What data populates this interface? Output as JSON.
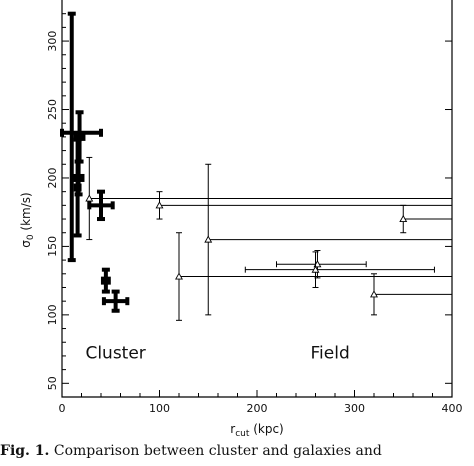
{
  "chart_data": {
    "type": "scatter",
    "xlabel": "r",
    "xlabel_subscript": "cut",
    "xlabel_unit": " (kpc)",
    "ylabel": "σ",
    "ylabel_subscript": "0",
    "ylabel_unit": " (km/s)",
    "xlim": [
      0,
      400
    ],
    "ylim": [
      40,
      330
    ],
    "xticks": [
      0,
      100,
      200,
      300,
      400
    ],
    "yticks": [
      50,
      100,
      150,
      200,
      250,
      300
    ],
    "grid": false,
    "annotations": [
      {
        "text": "Cluster",
        "x": 55,
        "y": 68
      },
      {
        "text": "Field",
        "x": 275,
        "y": 68
      }
    ],
    "series": [
      {
        "marker": "none",
        "weight": "bold",
        "points": [
          {
            "x": 10,
            "xerr": [
              0,
              0
            ],
            "y": 230,
            "yerr": [
              90,
              90
            ]
          },
          {
            "x": 20,
            "xerr": [
              20,
              20
            ],
            "y": 233,
            "yerr": [
              0,
              0
            ]
          },
          {
            "x": 18,
            "xerr": [
              4,
              4
            ],
            "y": 230,
            "yerr": [
              18,
              18
            ]
          },
          {
            "x": 17,
            "xerr": [
              4,
              4
            ],
            "y": 200,
            "yerr": [
              12,
              12
            ]
          },
          {
            "x": 16,
            "xerr": [
              2,
              2
            ],
            "y": 193,
            "yerr": [
              35,
              35
            ]
          },
          {
            "x": 40,
            "xerr": [
              12,
              12
            ],
            "y": 180,
            "yerr": [
              10,
              10
            ]
          },
          {
            "x": 45,
            "xerr": [
              3,
              3
            ],
            "y": 125,
            "yerr": [
              8,
              8
            ]
          },
          {
            "x": 55,
            "xerr": [
              12,
              12
            ],
            "y": 110,
            "yerr": [
              7,
              7
            ]
          }
        ]
      },
      {
        "marker": "triangle",
        "weight": "thin",
        "points": [
          {
            "x": 28,
            "xerr": [
              0,
              372
            ],
            "y": 185,
            "yerr": [
              30,
              30
            ]
          },
          {
            "x": 100,
            "xerr": [
              0,
              300
            ],
            "y": 180,
            "yerr": [
              10,
              10
            ]
          },
          {
            "x": 150,
            "xerr": [
              0,
              250
            ],
            "y": 155,
            "yerr": [
              55,
              55
            ]
          },
          {
            "x": 120,
            "xerr": [
              0,
              280
            ],
            "y": 128,
            "yerr": [
              32,
              32
            ]
          },
          {
            "x": 262,
            "xerr": [
              42,
              50
            ],
            "y": 137,
            "yerr": [
              10,
              10
            ]
          },
          {
            "x": 260,
            "xerr": [
              72,
              122
            ],
            "y": 133,
            "yerr": [
              13,
              13
            ]
          },
          {
            "x": 320,
            "xerr": [
              0,
              80
            ],
            "y": 115,
            "yerr": [
              15,
              15
            ]
          },
          {
            "x": 350,
            "xerr": [
              0,
              50
            ],
            "y": 170,
            "yerr": [
              10,
              10
            ]
          }
        ]
      }
    ]
  },
  "caption": {
    "label": "Fig. 1.",
    "text": " Comparison between cluster and galaxies and"
  }
}
